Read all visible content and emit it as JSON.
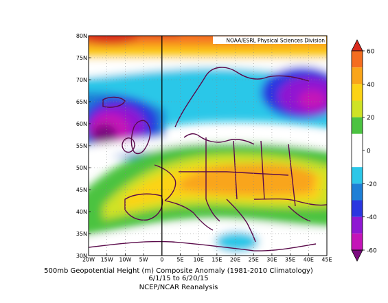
{
  "header": {
    "source": "NOAA/ESRL Physical Sciences Division"
  },
  "caption": {
    "line1": "500mb Geopotential Height (m) Composite Anomaly (1981-2010 Climatology)",
    "line2": "6/1/15  to 6/20/15",
    "line3": "NCEP/NCAR Reanalysis"
  },
  "map": {
    "lat_labels": [
      "80N",
      "75N",
      "70N",
      "65N",
      "60N",
      "55N",
      "50N",
      "45N",
      "40N",
      "35N",
      "30N"
    ],
    "lon_labels": [
      "20W",
      "15W",
      "10W",
      "5W",
      "0",
      "5E",
      "10E",
      "15E",
      "20E",
      "25E",
      "30E",
      "35E",
      "40E",
      "45E"
    ],
    "lat_range": [
      30,
      80
    ],
    "lon_range": [
      -20,
      45
    ],
    "grid": true,
    "coastline_color": "#5a0a4a"
  },
  "colorbar": {
    "labels": [
      "60",
      "40",
      "20",
      "0",
      "-20",
      "-40",
      "-60"
    ],
    "bins": [
      {
        "range": [
          60,
          70
        ],
        "color": "#d92b1e"
      },
      {
        "range": [
          50,
          60
        ],
        "color": "#f46d20"
      },
      {
        "range": [
          40,
          50
        ],
        "color": "#f9a51a"
      },
      {
        "range": [
          30,
          40
        ],
        "color": "#fcd315"
      },
      {
        "range": [
          20,
          30
        ],
        "color": "#cfe225"
      },
      {
        "range": [
          10,
          20
        ],
        "color": "#4cc341"
      },
      {
        "range": [
          0,
          10
        ],
        "color": "#ffffff"
      },
      {
        "range": [
          -10,
          0
        ],
        "color": "#ffffff"
      },
      {
        "range": [
          -20,
          -10
        ],
        "color": "#2cc7e8"
      },
      {
        "range": [
          -30,
          -20
        ],
        "color": "#1e7fd6"
      },
      {
        "range": [
          -40,
          -30
        ],
        "color": "#2a36e0"
      },
      {
        "range": [
          -50,
          -40
        ],
        "color": "#8f18d2"
      },
      {
        "range": [
          -60,
          -50
        ],
        "color": "#c414b8"
      },
      {
        "range": [
          -70,
          -60
        ],
        "color": "#7c0a80"
      }
    ]
  },
  "chart_data": {
    "type": "heatmap",
    "title": "500mb Geopotential Height (m) Composite Anomaly (1981-2010 Climatology)",
    "subtitle": "6/1/15  to 6/20/15",
    "source": "NCEP/NCAR Reanalysis",
    "lon_range": [
      -20,
      45
    ],
    "lat_range": [
      30,
      80
    ],
    "units": "m",
    "features": [
      {
        "region": "far north (78-80N)",
        "anomaly": 60
      },
      {
        "region": "north band (73-77N)",
        "anomaly": 40
      },
      {
        "region": "Iceland/Scandinavia band (62-70N)",
        "anomaly": -20
      },
      {
        "region": "west of Scotland (55-63N, 20-12W)",
        "anomaly": -60
      },
      {
        "region": "NW Russia (63-68N, 38-45E)",
        "anomaly": -50
      },
      {
        "region": "Central Europe (45-52N, 12-30E)",
        "anomaly": 40
      },
      {
        "region": "Iberia/W Mediterranean (38-45N, 10W-5E)",
        "anomaly": 20
      },
      {
        "region": "North Africa/E Med (33-37N, 15-25E)",
        "anomaly": -20
      }
    ]
  }
}
